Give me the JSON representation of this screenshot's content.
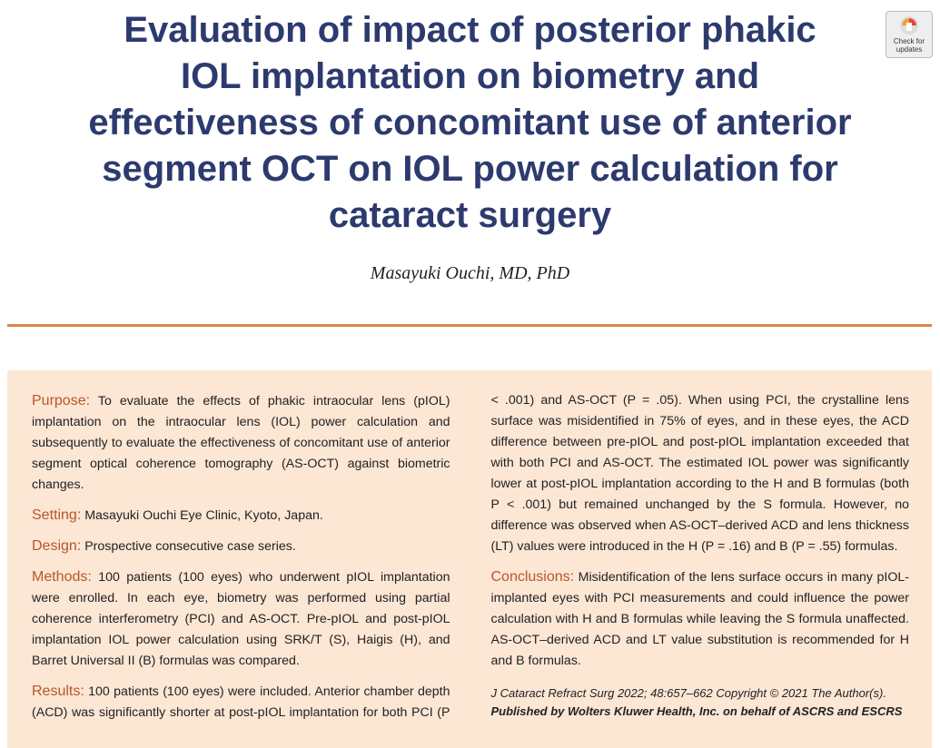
{
  "header": {
    "title_lines": [
      "Evaluation of impact of posterior phakic",
      "IOL implantation on biometry and",
      "effectiveness of concomitant use of anterior",
      "segment OCT on IOL power calculation for",
      "cataract surgery"
    ],
    "author": "Masayuki Ouchi, MD, PhD",
    "badge": [
      "Check for",
      "updates"
    ]
  },
  "abstract": {
    "sections": [
      {
        "label": "Purpose:",
        "text": "To evaluate the effects of phakic intraocular lens (pIOL) implantation on the intraocular lens (IOL) power calculation and subsequently to evaluate the effectiveness of concomitant use of anterior segment optical coherence tomography (AS-OCT) against biometric changes."
      },
      {
        "label": "Setting:",
        "text": "Masayuki Ouchi Eye Clinic, Kyoto, Japan."
      },
      {
        "label": "Design:",
        "text": "Prospective consecutive case series."
      },
      {
        "label": "Methods:",
        "text": "100 patients (100 eyes) who underwent pIOL implantation were enrolled. In each eye, biometry was performed using partial coherence interferometry (PCI) and AS-OCT. Pre-pIOL and post-pIOL implantation IOL power calculation using SRK/T (S), Haigis (H), and Barret Universal II (B) formulas was compared."
      },
      {
        "label": "Results:",
        "text": "100 patients (100 eyes) were included. Anterior chamber depth (ACD) was significantly shorter at post-pIOL implantation for both PCI (P < .001) and AS-OCT (P = .05). When using PCI, the crystalline lens surface was misidentified in 75% of eyes, and in these eyes, the ACD difference between pre-pIOL and post-pIOL implantation exceeded that with both PCI and AS-OCT. The estimated IOL power was significantly lower at post-pIOL implantation according to the H and B formulas (both P < .001) but remained unchanged by the S formula. However, no difference was observed when AS-OCT–derived ACD and lens thickness (LT) values were introduced in the H (P = .16) and B (P = .55) formulas."
      },
      {
        "label": "Conclusions:",
        "text": "Misidentification of the lens surface occurs in many pIOL-implanted eyes with PCI measurements and could influence the power calculation with H and B formulas while leaving the S formula unaffected. AS-OCT–derived ACD and LT value substitution is recommended for H and B formulas."
      }
    ],
    "citation": [
      "J Cataract Refract Surg 2022; 48:657–662 Copyright © 2021 The Author(s).",
      "Published by Wolters Kluwer Health, Inc. on behalf of ASCRS and ESCRS"
    ]
  }
}
